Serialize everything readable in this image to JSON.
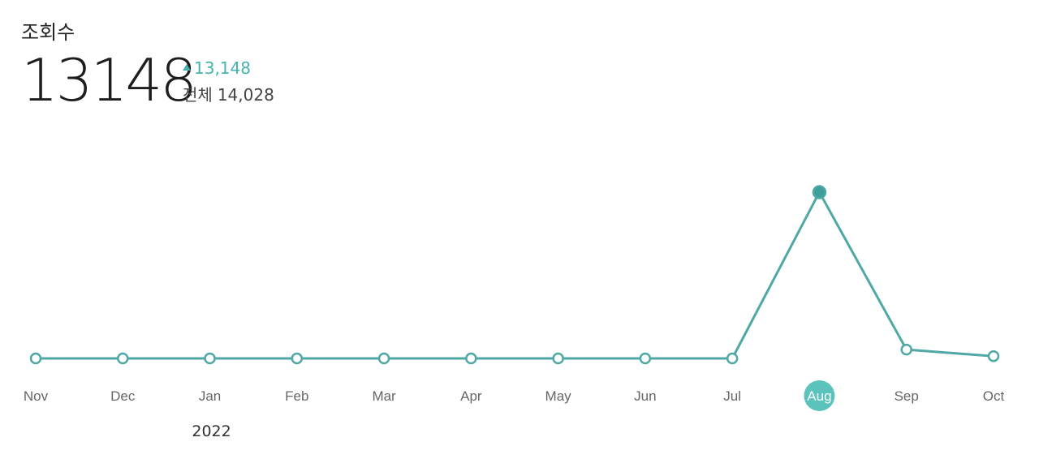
{
  "header": {
    "title": "조회수",
    "value": "13148",
    "delta": "13,148",
    "total_label": "전체",
    "total_value": "14,028"
  },
  "colors": {
    "line": "#4fa8a4",
    "accent": "#45b3ad",
    "selected_fill": "#3e9e99",
    "highlight_circle": "#5cc2bc"
  },
  "chart_data": {
    "type": "line",
    "categories": [
      "Nov",
      "Dec",
      "Jan",
      "Feb",
      "Mar",
      "Apr",
      "May",
      "Jun",
      "Jul",
      "Aug",
      "Sep",
      "Oct"
    ],
    "year_labels": [
      {
        "index": 2,
        "label": "2022"
      }
    ],
    "series": [
      {
        "values": [
          0,
          0,
          0,
          0,
          0,
          0,
          0,
          0,
          0,
          13148,
          700,
          180
        ]
      }
    ],
    "selected_index": 9,
    "ylim": [
      0,
      13148
    ],
    "grid": false,
    "legend": "none"
  }
}
